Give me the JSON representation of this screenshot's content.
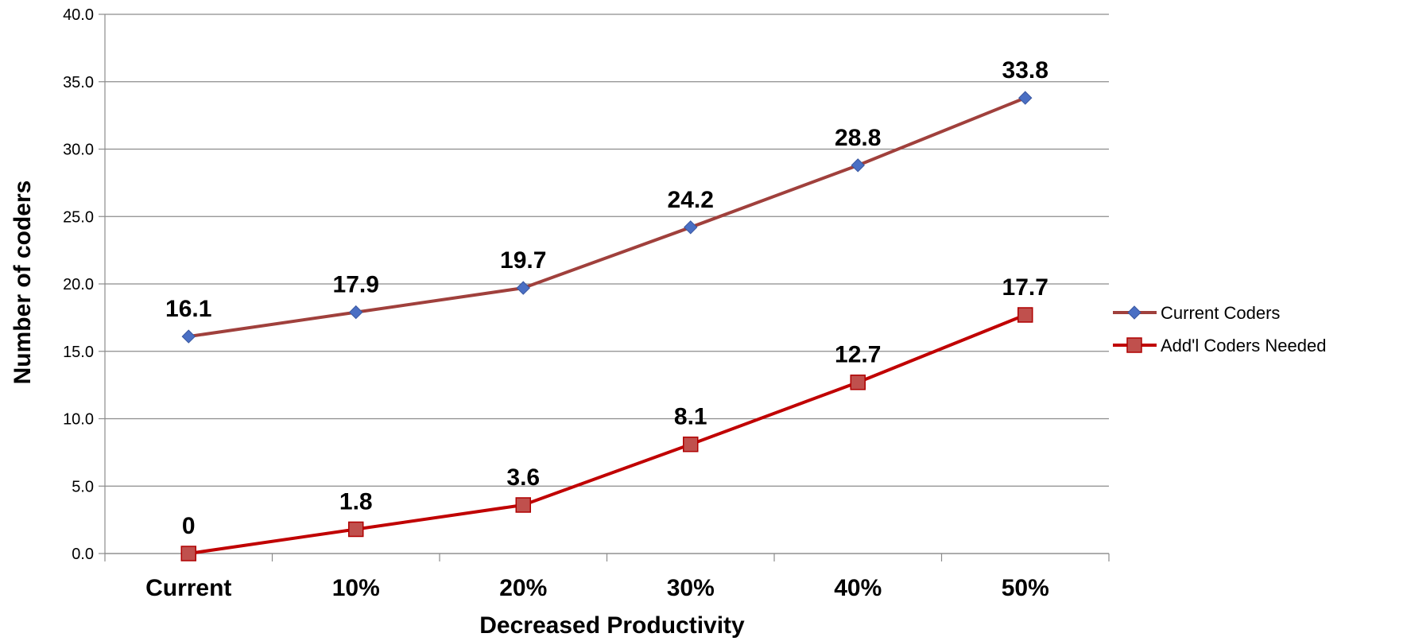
{
  "chart_data": {
    "type": "line",
    "title": "",
    "xlabel": "Decreased Productivity",
    "ylabel": "Number of coders",
    "categories": [
      "Current",
      "10%",
      "20%",
      "30%",
      "40%",
      "50%"
    ],
    "ylim": [
      0,
      40
    ],
    "ytick_step": 5,
    "yticks": [
      "0.0",
      "5.0",
      "10.0",
      "15.0",
      "20.0",
      "25.0",
      "30.0",
      "35.0",
      "40.0"
    ],
    "grid": true,
    "legend_position": "right",
    "series": [
      {
        "name": "Current Coders",
        "values": [
          16.1,
          17.9,
          19.7,
          24.2,
          28.8,
          33.8
        ],
        "labels": [
          "16.1",
          "17.9",
          "19.7",
          "24.2",
          "28.8",
          "33.8"
        ],
        "marker": "diamond",
        "line_color": "#A0403C",
        "marker_fill": "#4A6FC4",
        "marker_stroke": "#3A57A0"
      },
      {
        "name": "Add'l Coders Needed",
        "values": [
          0,
          1.8,
          3.6,
          8.1,
          12.7,
          17.7
        ],
        "labels": [
          "0",
          "1.8",
          "3.6",
          "8.1",
          "12.7",
          "17.7"
        ],
        "marker": "square",
        "line_color": "#C00000",
        "marker_fill": "#C0504D",
        "marker_stroke": "#B00000"
      }
    ]
  }
}
